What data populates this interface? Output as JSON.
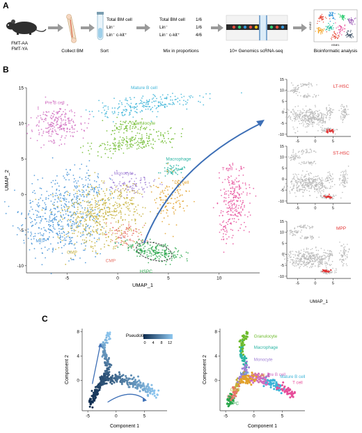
{
  "panel_letters": {
    "a": "A",
    "b": "B",
    "c": "C"
  },
  "panel_a": {
    "mouse_labels": [
      "FMT-AA",
      "FMT-YA"
    ],
    "steps": [
      "Collect BM",
      "Sort",
      "Mix in proportions",
      "10× Genomics scRNA-seq",
      "Bioinformatic analysis"
    ],
    "sort_list": [
      "Total BM cell",
      "Lin⁻",
      "Lin⁻ c-kit⁺"
    ],
    "mix_list": [
      {
        "name": "Total BM cell",
        "ratio": "1/6"
      },
      {
        "name": "Lin⁻",
        "ratio": "1/6"
      },
      {
        "name": "Lin⁻ c-kit⁺",
        "ratio": "4/6"
      }
    ],
    "tsne_xlabel": "tSNE1",
    "tsne_ylabel": "tSNE2"
  },
  "colors": {
    "mature_b": "#3cb4d8",
    "pre_b": "#d06bc0",
    "granulocyte": "#6dbb2c",
    "macrophage": "#2bb5a4",
    "monocyte": "#a282d6",
    "dc": "#e2a12a",
    "t_cell": "#e64e9a",
    "mep": "#3e8fd6",
    "gmp": "#c5b03a",
    "cmp": "#e8756a",
    "hspc": "#28a64a",
    "highlight_red": "#e33131",
    "gray": "#bdbdbd",
    "arrow": "#3d6fb6",
    "pseudo_dark": "#0d2b4e",
    "pseudo_light": "#8ec7f0"
  },
  "chart_data": [
    {
      "type": "scatter",
      "panel": "B main",
      "xlabel": "UMAP_1",
      "ylabel": "UMAP_2",
      "xlim": [
        -9,
        14
      ],
      "ylim": [
        -11,
        15
      ],
      "xticks": [
        -5,
        0,
        5,
        10
      ],
      "yticks": [
        -10,
        -5,
        0,
        5,
        10,
        15
      ],
      "clusters": [
        {
          "name": "Mature B cell",
          "color_key": "mature_b",
          "center": [
            3,
            12.5
          ]
        },
        {
          "name": "Pre B cell",
          "color_key": "pre_b",
          "center": [
            -6,
            10
          ]
        },
        {
          "name": "Granulocyte",
          "color_key": "granulocyte",
          "center": [
            1.5,
            6.5
          ]
        },
        {
          "name": "Macrophage",
          "color_key": "macrophage",
          "center": [
            5.2,
            3.2
          ]
        },
        {
          "name": "Monocyte",
          "color_key": "monocyte",
          "center": [
            1.5,
            1.5
          ]
        },
        {
          "name": "DC cell",
          "color_key": "dc",
          "center": [
            6,
            0
          ]
        },
        {
          "name": "T cell",
          "color_key": "t_cell",
          "center": [
            11.5,
            -1
          ]
        },
        {
          "name": "MEP",
          "color_key": "mep",
          "center": [
            -6,
            -4
          ]
        },
        {
          "name": "GMP",
          "color_key": "gmp",
          "center": [
            -3,
            -3
          ]
        },
        {
          "name": "CMP",
          "color_key": "cmp",
          "center": [
            0.5,
            -6.5
          ]
        },
        {
          "name": "HSPC",
          "color_key": "hspc",
          "center": [
            3.5,
            -8
          ]
        }
      ]
    },
    {
      "type": "scatter",
      "panel": "B insets",
      "xlabel": "UMAP_1",
      "xticks": [
        -5,
        0,
        5
      ],
      "yticks": [
        -10,
        -5,
        0,
        5,
        10,
        15
      ],
      "insets": [
        {
          "title": "LT-HSC",
          "highlight": [
            4.0,
            -8.5
          ]
        },
        {
          "title": "ST-HSC",
          "highlight": [
            3.5,
            -8.0
          ]
        },
        {
          "title": "MPP",
          "highlight": [
            3.0,
            -7.5
          ]
        }
      ]
    },
    {
      "type": "scatter",
      "panel": "C left",
      "xlabel": "Component 1",
      "ylabel": "Component 2",
      "xlim": [
        -6,
        9
      ],
      "ylim": [
        -5,
        8.5
      ],
      "xticks": [
        -5,
        0,
        5
      ],
      "yticks": [
        0,
        4,
        8
      ],
      "legend_title": "Pseudotime",
      "legend_ticks": [
        0,
        4,
        8,
        12
      ]
    },
    {
      "type": "scatter",
      "panel": "C right",
      "xlabel": "Component 1",
      "ylabel": "Component 2",
      "xlim": [
        -6,
        9
      ],
      "ylim": [
        -5,
        8.5
      ],
      "xticks": [
        -5,
        0,
        5
      ],
      "yticks": [
        0,
        4,
        8
      ],
      "labels": [
        {
          "name": "Granulocyte",
          "color_key": "granulocyte",
          "at": [
            0,
            7
          ]
        },
        {
          "name": "Macrophage",
          "color_key": "macrophage",
          "at": [
            0,
            5.2
          ]
        },
        {
          "name": "Monocyte",
          "color_key": "monocyte",
          "at": [
            0,
            3.2
          ]
        },
        {
          "name": "MEP",
          "color_key": "mep",
          "at": [
            -2.5,
            0.9
          ]
        },
        {
          "name": "DC cell",
          "color_key": "dc",
          "at": [
            -0.5,
            0.6
          ]
        },
        {
          "name": "Pre B cell",
          "color_key": "pre_b",
          "at": [
            2.3,
            0.7
          ]
        },
        {
          "name": "Mature B cell",
          "color_key": "mature_b",
          "at": [
            4.6,
            0.4
          ]
        },
        {
          "name": "T cell",
          "color_key": "t_cell",
          "at": [
            6.8,
            -0.6
          ]
        },
        {
          "name": "GMP",
          "color_key": "gmp",
          "at": [
            -4.2,
            -1.8
          ]
        },
        {
          "name": "CMP",
          "color_key": "cmp",
          "at": [
            -4.8,
            -2.9
          ]
        },
        {
          "name": "HSPC",
          "color_key": "hspc",
          "at": [
            -4.8,
            -4.0
          ]
        }
      ]
    }
  ]
}
